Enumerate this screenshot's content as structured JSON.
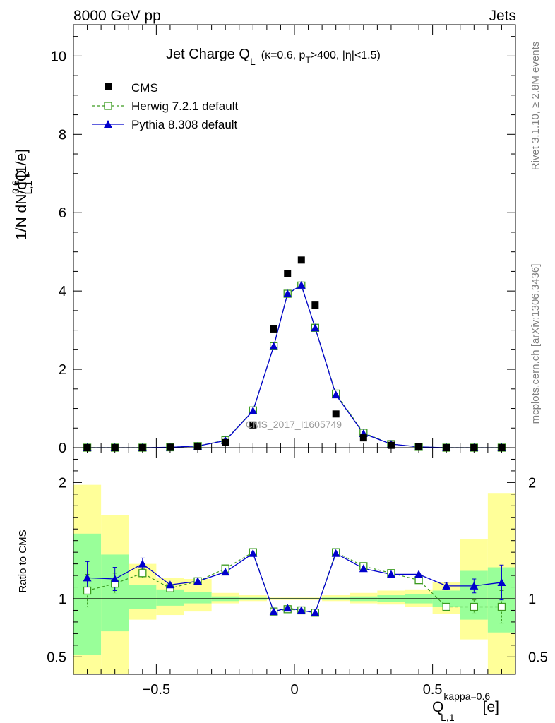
{
  "header": {
    "energy": "8000 GeV pp",
    "category": "Jets",
    "rivet": "Rivet 3.1.10, ≥ 2.8M events",
    "mcplots": "mcplots.cern.ch [arXiv:1306.3436]",
    "watermark": "CMS_2017_I1605749"
  },
  "title": {
    "main": "Jet Charge Q",
    "main_sub": "L",
    "cuts_a": "(κ=0.6, p",
    "cuts_sub": "T",
    "cuts_b": ">400, |η|<1.5)"
  },
  "axes": {
    "ylabel": "1/N dN/dQ",
    "ylabel_sup": "0.6",
    "ylabel_sub": "L,1",
    "ylabel_unit": "[1/e]",
    "ratio_ylabel": "Ratio to CMS",
    "xlabel": "Q",
    "xlabel_sup": "kappa=0.6",
    "xlabel_sub": "L,1",
    "xlabel_unit": "[e]"
  },
  "legend": {
    "cms": "CMS",
    "herwig": "Herwig 7.2.1 default",
    "pythia": "Pythia 8.308 default"
  },
  "colors": {
    "data": "#000000",
    "herwig": "#3a9a1e",
    "pythia": "#0000cc",
    "band_inner": "#99ff99",
    "band_outer": "#ffff99"
  },
  "chart_data": [
    {
      "type": "scatter",
      "panel": "main",
      "xlim": [
        -0.8,
        0.8
      ],
      "ylim": [
        0,
        10.8
      ],
      "yticks": [
        0,
        2,
        4,
        6,
        8,
        10
      ],
      "ytick_labels": [
        "0",
        "2",
        "4",
        "6",
        "8",
        "10"
      ],
      "series": [
        {
          "name": "CMS",
          "x": [
            -0.75,
            -0.65,
            -0.55,
            -0.45,
            -0.35,
            -0.25,
            -0.15,
            -0.075,
            -0.025,
            0.025,
            0.075,
            0.15,
            0.25,
            0.35,
            0.45,
            0.55,
            0.65,
            0.75
          ],
          "y": [
            0.0,
            0.0,
            0.0,
            0.01,
            0.03,
            0.13,
            0.58,
            3.03,
            4.44,
            4.79,
            3.64,
            0.86,
            0.25,
            0.06,
            0.02,
            0.0,
            0.0,
            0.0
          ]
        },
        {
          "name": "Herwig 7.2.1 default",
          "x": [
            -0.75,
            -0.65,
            -0.55,
            -0.45,
            -0.35,
            -0.25,
            -0.15,
            -0.075,
            -0.025,
            0.025,
            0.075,
            0.15,
            0.25,
            0.35,
            0.45,
            0.55,
            0.65,
            0.75
          ],
          "y": [
            0.0,
            0.0,
            0.0,
            0.01,
            0.04,
            0.19,
            0.95,
            2.59,
            3.93,
            4.14,
            3.06,
            1.38,
            0.38,
            0.09,
            0.02,
            0.0,
            0.0,
            0.0
          ]
        },
        {
          "name": "Pythia 8.308 default",
          "x": [
            -0.75,
            -0.65,
            -0.55,
            -0.45,
            -0.35,
            -0.25,
            -0.15,
            -0.075,
            -0.025,
            0.025,
            0.075,
            0.15,
            0.25,
            0.35,
            0.45,
            0.55,
            0.65,
            0.75
          ],
          "y": [
            0.0,
            0.0,
            0.0,
            0.01,
            0.04,
            0.18,
            0.94,
            2.59,
            3.93,
            4.15,
            3.06,
            1.35,
            0.36,
            0.09,
            0.02,
            0.0,
            0.0,
            0.0
          ]
        }
      ]
    },
    {
      "type": "line",
      "panel": "ratio",
      "xlim": [
        -0.8,
        0.8
      ],
      "ylim": [
        0.35,
        2.3
      ],
      "yticks": [
        0.5,
        1,
        2
      ],
      "ytick_labels": [
        "0.5",
        "1",
        "2"
      ],
      "xticks": [
        -0.5,
        0,
        0.5
      ],
      "xtick_labels": [
        "−0.5",
        "0",
        "0.5"
      ],
      "bins": [
        -0.8,
        -0.7,
        -0.6,
        -0.5,
        -0.4,
        -0.3,
        -0.2,
        -0.1,
        -0.05,
        0,
        0.05,
        0.1,
        0.2,
        0.3,
        0.4,
        0.5,
        0.6,
        0.7,
        0.8
      ],
      "band_inner": [
        [
          0.52,
          1.56
        ],
        [
          0.72,
          1.38
        ],
        [
          0.91,
          1.12
        ],
        [
          0.94,
          1.08
        ],
        [
          0.96,
          1.06
        ],
        [
          0.98,
          1.02
        ],
        [
          0.99,
          1.01
        ],
        [
          0.995,
          1.005
        ],
        [
          0.995,
          1.005
        ],
        [
          0.995,
          1.005
        ],
        [
          0.995,
          1.005
        ],
        [
          0.99,
          1.01
        ],
        [
          0.98,
          1.02
        ],
        [
          0.97,
          1.03
        ],
        [
          0.96,
          1.04
        ],
        [
          0.93,
          1.07
        ],
        [
          0.82,
          1.24
        ],
        [
          0.71,
          1.27
        ]
      ],
      "band_outer": [
        [
          0.35,
          1.98
        ],
        [
          0.35,
          1.72
        ],
        [
          0.82,
          1.3
        ],
        [
          0.86,
          1.18
        ],
        [
          0.89,
          1.17
        ],
        [
          0.96,
          1.05
        ],
        [
          0.98,
          1.03
        ],
        [
          0.99,
          1.01
        ],
        [
          0.99,
          1.01
        ],
        [
          0.99,
          1.01
        ],
        [
          0.99,
          1.01
        ],
        [
          0.98,
          1.03
        ],
        [
          0.96,
          1.05
        ],
        [
          0.95,
          1.07
        ],
        [
          0.93,
          1.08
        ],
        [
          0.87,
          1.14
        ],
        [
          0.65,
          1.51
        ],
        [
          0.35,
          1.91
        ]
      ],
      "series": [
        {
          "name": "Herwig 7.2.1 default",
          "x": [
            -0.75,
            -0.65,
            -0.55,
            -0.45,
            -0.35,
            -0.25,
            -0.15,
            -0.075,
            -0.025,
            0.025,
            0.075,
            0.15,
            0.25,
            0.35,
            0.45,
            0.55,
            0.65,
            0.75
          ],
          "y": [
            1.07,
            1.13,
            1.22,
            1.09,
            1.15,
            1.26,
            1.4,
            0.89,
            0.91,
            0.9,
            0.88,
            1.4,
            1.28,
            1.22,
            1.16,
            0.93,
            0.93,
            0.93
          ],
          "err": [
            0.14,
            0.09,
            0.04,
            0.02,
            0.02,
            0.01,
            0.01,
            0.005,
            0.005,
            0.005,
            0.005,
            0.01,
            0.01,
            0.01,
            0.02,
            0.03,
            0.06,
            0.14
          ]
        },
        {
          "name": "Pythia 8.308 default",
          "x": [
            -0.75,
            -0.65,
            -0.55,
            -0.45,
            -0.35,
            -0.25,
            -0.15,
            -0.075,
            -0.025,
            0.025,
            0.075,
            0.15,
            0.25,
            0.35,
            0.45,
            0.55,
            0.65,
            0.75
          ],
          "y": [
            1.18,
            1.17,
            1.3,
            1.12,
            1.15,
            1.23,
            1.39,
            0.89,
            0.92,
            0.9,
            0.88,
            1.39,
            1.26,
            1.21,
            1.21,
            1.11,
            1.11,
            1.14
          ],
          "err": [
            0.14,
            0.1,
            0.05,
            0.02,
            0.02,
            0.01,
            0.01,
            0.005,
            0.005,
            0.005,
            0.005,
            0.01,
            0.01,
            0.01,
            0.02,
            0.03,
            0.06,
            0.15
          ]
        }
      ]
    }
  ]
}
